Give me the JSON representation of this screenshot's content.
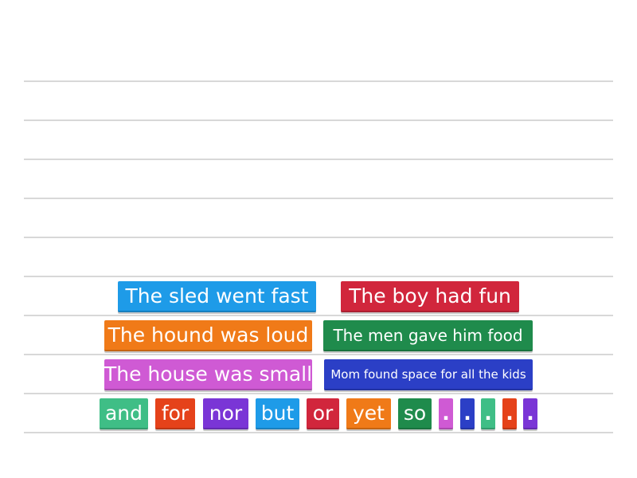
{
  "answer_area": {
    "line_count": 10
  },
  "tiles": [
    {
      "id": "sled",
      "label": "The sled went fast",
      "color": "#1e9be8"
    },
    {
      "id": "boy",
      "label": "The boy had fun",
      "color": "#d1263c"
    },
    {
      "id": "hound",
      "label": "The hound was loud",
      "color": "#f07a18"
    },
    {
      "id": "men",
      "label": "The men gave him food",
      "color": "#1f8b4c"
    },
    {
      "id": "house",
      "label": "The house was small",
      "color": "#cf5ad4"
    },
    {
      "id": "mom",
      "label": "Mom found space for all the kids",
      "color": "#2b3fc6"
    },
    {
      "id": "and",
      "label": "and",
      "color": "#3fbe86"
    },
    {
      "id": "for",
      "label": "for",
      "color": "#e5421a"
    },
    {
      "id": "nor",
      "label": "nor",
      "color": "#7a35d6"
    },
    {
      "id": "but",
      "label": "but",
      "color": "#1e9be8"
    },
    {
      "id": "or",
      "label": "or",
      "color": "#d1263c"
    },
    {
      "id": "yet",
      "label": "yet",
      "color": "#f07a18"
    },
    {
      "id": "so",
      "label": "so",
      "color": "#1f8b4c"
    },
    {
      "id": "period1",
      "label": ".",
      "color": "#cf5ad4"
    },
    {
      "id": "period2",
      "label": ".",
      "color": "#2b3fc6"
    },
    {
      "id": "period3",
      "label": ".",
      "color": "#3fbe86"
    },
    {
      "id": "period4",
      "label": ".",
      "color": "#e5421a"
    },
    {
      "id": "period5",
      "label": ".",
      "color": "#7a35d6"
    }
  ]
}
